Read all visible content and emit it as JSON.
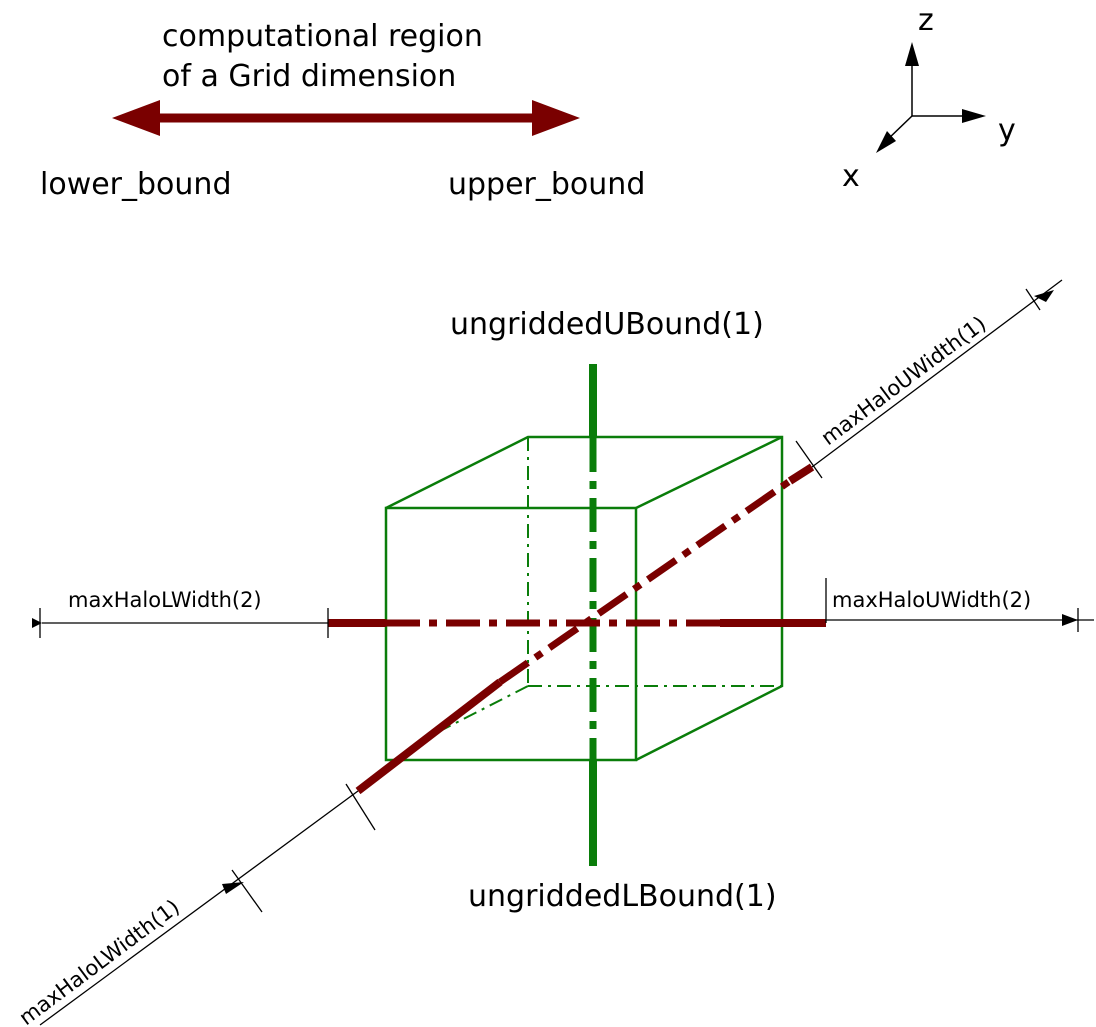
{
  "legend": {
    "region_line1": "computational region",
    "region_line2": "of a Grid dimension",
    "lower": "lower_bound",
    "upper": "upper_bound"
  },
  "axes": {
    "x": "x",
    "y": "y",
    "z": "z"
  },
  "labels": {
    "ungridded_upper": "ungriddedUBound(1)",
    "ungridded_lower": "ungriddedLBound(1)",
    "halo_l_width_2": "maxHaloLWidth(2)",
    "halo_u_width_2": "maxHaloUWidth(2)",
    "halo_u_width_1": "maxHaloUWidth(1)",
    "halo_l_width_1": "maxHaloLWidth(1)"
  },
  "colors": {
    "grid_dimension": "#7a0000",
    "ungridded": "#0a7d0a",
    "dimension_line": "#000000"
  }
}
